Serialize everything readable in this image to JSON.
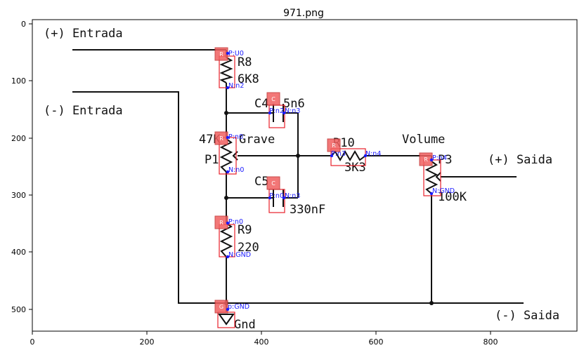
{
  "title": "971.png",
  "axes": {
    "x_ticks": [
      "0",
      "200",
      "400",
      "600",
      "800"
    ],
    "y_ticks": [
      "0",
      "100",
      "200",
      "300",
      "400",
      "500"
    ]
  },
  "labels": {
    "in_pos": "(+) Entrada",
    "in_neg": "(-) Entrada",
    "r8_name": "R8",
    "r8_value": "6K8",
    "c4_name": "C4",
    "c4_value": "5n6",
    "p1_prefix": "47K",
    "p1_label": "Grave",
    "p1_name": "P1",
    "r10_name": "R10",
    "r10_value": "3K3",
    "volume": "Volume",
    "p3_name": "P3",
    "p3_value": "100K",
    "out_pos": "(+) Saida",
    "out_neg": "(-) Saida",
    "c5_name": "C5",
    "c5_value": "330nF",
    "r9_name": "R9",
    "r9_value": "220",
    "gnd": "Gnd"
  },
  "components": [
    {
      "type": "R",
      "pins": [
        "P:U0",
        "N:n2"
      ]
    },
    {
      "type": "C",
      "pins": [
        "P:n2",
        "N:n3"
      ]
    },
    {
      "type": "R",
      "pins": [
        "P:n0",
        "N:n0"
      ]
    },
    {
      "type": "C",
      "pins": [
        "P:n0",
        "N:n3"
      ]
    },
    {
      "type": "R",
      "pins": [
        "P:n3",
        "N:n4"
      ]
    },
    {
      "type": "R",
      "pins": [
        "P:n4",
        "N:GND"
      ]
    },
    {
      "type": "R",
      "pins": [
        "P:n0",
        "N:GND"
      ]
    },
    {
      "type": "G",
      "pins": [
        "p:GND"
      ]
    }
  ],
  "colors": {
    "annotation": "#1a1aff",
    "box": "#e8202a",
    "badge": "#f06060"
  }
}
